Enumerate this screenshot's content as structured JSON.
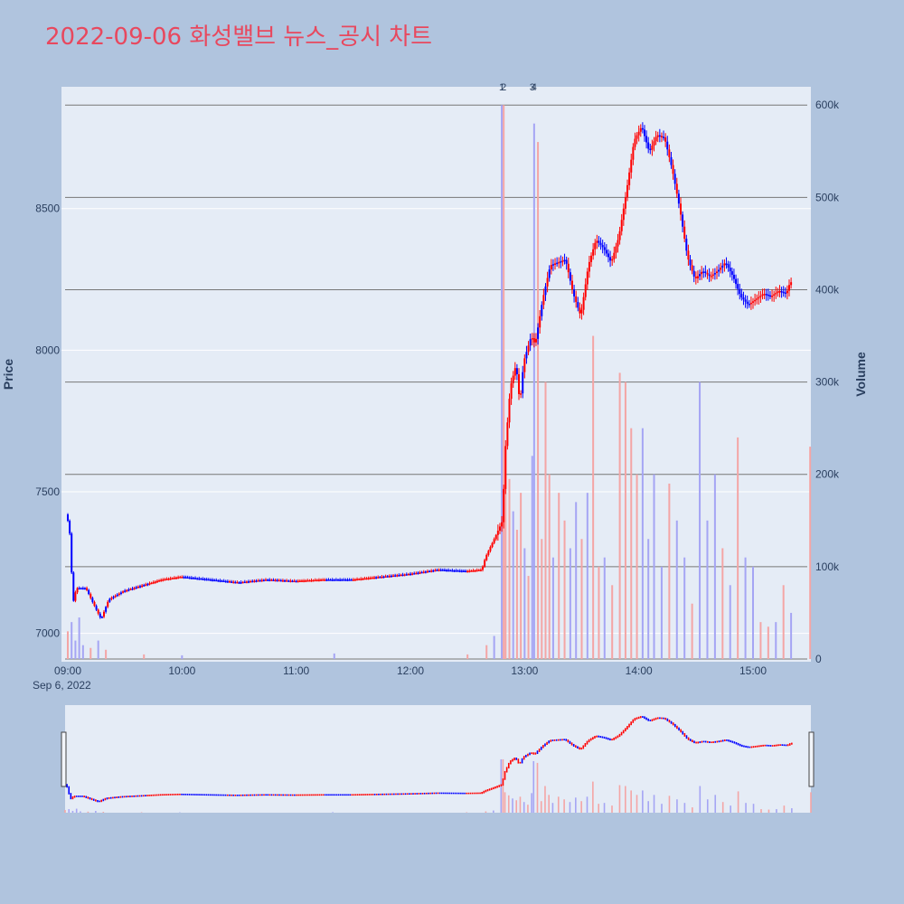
{
  "colors": {
    "background": "#b0c4de",
    "plot_background": "#e5ecf6",
    "title": "#e8485e",
    "up": "#ff0000",
    "down": "#0000ff",
    "volume_up": "#f4a5a5",
    "volume_down": "#a5a5f4",
    "axis_text": "#2a3f5f"
  },
  "chart_data": {
    "type": "candlestick",
    "title": "2022-09-06 화성밸브 뉴스_공시 차트",
    "x_ticks": [
      "09:00",
      "10:00",
      "11:00",
      "12:00",
      "13:00",
      "14:00",
      "15:00"
    ],
    "x_date_label": "Sep 6, 2022",
    "y_label": "Price",
    "y2_label": "Volume",
    "y_ticks": [
      7000,
      7500,
      8000,
      8500
    ],
    "y2_ticks": [
      "0",
      "100k",
      "200k",
      "300k",
      "400k",
      "500k",
      "600k"
    ],
    "y_range": [
      6900,
      8930
    ],
    "y2_range": [
      0,
      610000
    ],
    "x_range": [
      "09:00",
      "15:30"
    ],
    "annotations": [
      "1",
      "2",
      "3",
      "4"
    ],
    "annotation_times": [
      "12:48",
      "12:49",
      "13:04",
      "13:05"
    ],
    "price_path": [
      [
        "09:00",
        7420
      ],
      [
        "09:02",
        7330
      ],
      [
        "09:03",
        7100
      ],
      [
        "09:05",
        7160
      ],
      [
        "09:10",
        7160
      ],
      [
        "09:15",
        7090
      ],
      [
        "09:18",
        7050
      ],
      [
        "09:22",
        7120
      ],
      [
        "09:30",
        7150
      ],
      [
        "09:40",
        7170
      ],
      [
        "09:50",
        7190
      ],
      [
        "10:00",
        7200
      ],
      [
        "10:15",
        7190
      ],
      [
        "10:30",
        7180
      ],
      [
        "10:45",
        7190
      ],
      [
        "11:00",
        7185
      ],
      [
        "11:15",
        7190
      ],
      [
        "11:30",
        7190
      ],
      [
        "11:45",
        7200
      ],
      [
        "12:00",
        7210
      ],
      [
        "12:15",
        7225
      ],
      [
        "12:30",
        7220
      ],
      [
        "12:38",
        7225
      ],
      [
        "12:40",
        7270
      ],
      [
        "12:45",
        7340
      ],
      [
        "12:49",
        7400
      ],
      [
        "12:50",
        7620
      ],
      [
        "12:53",
        7870
      ],
      [
        "12:56",
        7950
      ],
      [
        "12:58",
        7810
      ],
      [
        "13:00",
        7960
      ],
      [
        "13:04",
        8050
      ],
      [
        "13:06",
        8020
      ],
      [
        "13:10",
        8180
      ],
      [
        "13:14",
        8300
      ],
      [
        "13:18",
        8310
      ],
      [
        "13:22",
        8320
      ],
      [
        "13:26",
        8200
      ],
      [
        "13:30",
        8120
      ],
      [
        "13:34",
        8300
      ],
      [
        "13:38",
        8390
      ],
      [
        "13:42",
        8360
      ],
      [
        "13:46",
        8310
      ],
      [
        "13:50",
        8400
      ],
      [
        "13:54",
        8560
      ],
      [
        "13:58",
        8740
      ],
      [
        "14:02",
        8790
      ],
      [
        "14:06",
        8700
      ],
      [
        "14:10",
        8760
      ],
      [
        "14:14",
        8750
      ],
      [
        "14:18",
        8640
      ],
      [
        "14:22",
        8500
      ],
      [
        "14:26",
        8330
      ],
      [
        "14:30",
        8250
      ],
      [
        "14:34",
        8280
      ],
      [
        "14:38",
        8260
      ],
      [
        "14:42",
        8280
      ],
      [
        "14:46",
        8310
      ],
      [
        "14:50",
        8260
      ],
      [
        "14:54",
        8190
      ],
      [
        "14:58",
        8160
      ],
      [
        "15:02",
        8180
      ],
      [
        "15:06",
        8200
      ],
      [
        "15:10",
        8190
      ],
      [
        "15:14",
        8210
      ],
      [
        "15:18",
        8200
      ],
      [
        "15:20",
        8240
      ]
    ],
    "volume_bars": [
      [
        "09:00",
        30000,
        "up"
      ],
      [
        "09:02",
        40000,
        "down"
      ],
      [
        "09:04",
        20000,
        "down"
      ],
      [
        "09:06",
        45000,
        "down"
      ],
      [
        "09:08",
        15000,
        "down"
      ],
      [
        "09:12",
        12000,
        "up"
      ],
      [
        "09:16",
        20000,
        "down"
      ],
      [
        "09:20",
        10000,
        "up"
      ],
      [
        "09:40",
        5000,
        "up"
      ],
      [
        "10:00",
        4000,
        "down"
      ],
      [
        "11:20",
        6000,
        "down"
      ],
      [
        "12:30",
        5000,
        "up"
      ],
      [
        "12:40",
        15000,
        "up"
      ],
      [
        "12:44",
        25000,
        "down"
      ],
      [
        "12:48",
        600000,
        "down"
      ],
      [
        "12:49",
        600000,
        "up"
      ],
      [
        "12:50",
        230000,
        "up"
      ],
      [
        "12:52",
        195000,
        "up"
      ],
      [
        "12:54",
        160000,
        "down"
      ],
      [
        "12:56",
        140000,
        "up"
      ],
      [
        "12:58",
        180000,
        "up"
      ],
      [
        "13:00",
        120000,
        "down"
      ],
      [
        "13:02",
        90000,
        "up"
      ],
      [
        "13:04",
        220000,
        "down"
      ],
      [
        "13:05",
        580000,
        "down"
      ],
      [
        "13:07",
        560000,
        "up"
      ],
      [
        "13:09",
        130000,
        "up"
      ],
      [
        "13:11",
        300000,
        "up"
      ],
      [
        "13:13",
        200000,
        "up"
      ],
      [
        "13:15",
        110000,
        "down"
      ],
      [
        "13:18",
        180000,
        "up"
      ],
      [
        "13:21",
        150000,
        "up"
      ],
      [
        "13:24",
        120000,
        "down"
      ],
      [
        "13:27",
        170000,
        "down"
      ],
      [
        "13:30",
        130000,
        "up"
      ],
      [
        "13:33",
        180000,
        "down"
      ],
      [
        "13:36",
        350000,
        "up"
      ],
      [
        "13:39",
        100000,
        "up"
      ],
      [
        "13:42",
        110000,
        "down"
      ],
      [
        "13:46",
        80000,
        "up"
      ],
      [
        "13:50",
        310000,
        "up"
      ],
      [
        "13:53",
        300000,
        "up"
      ],
      [
        "13:56",
        250000,
        "up"
      ],
      [
        "13:59",
        200000,
        "up"
      ],
      [
        "14:02",
        250000,
        "down"
      ],
      [
        "14:05",
        130000,
        "down"
      ],
      [
        "14:08",
        200000,
        "down"
      ],
      [
        "14:12",
        100000,
        "down"
      ],
      [
        "14:16",
        190000,
        "up"
      ],
      [
        "14:20",
        150000,
        "down"
      ],
      [
        "14:24",
        110000,
        "down"
      ],
      [
        "14:28",
        60000,
        "up"
      ],
      [
        "14:32",
        300000,
        "down"
      ],
      [
        "14:36",
        150000,
        "down"
      ],
      [
        "14:40",
        200000,
        "down"
      ],
      [
        "14:44",
        120000,
        "up"
      ],
      [
        "14:48",
        80000,
        "down"
      ],
      [
        "14:52",
        240000,
        "up"
      ],
      [
        "14:56",
        110000,
        "down"
      ],
      [
        "15:00",
        100000,
        "down"
      ],
      [
        "15:04",
        40000,
        "up"
      ],
      [
        "15:08",
        35000,
        "up"
      ],
      [
        "15:12",
        40000,
        "down"
      ],
      [
        "15:16",
        80000,
        "up"
      ],
      [
        "15:20",
        50000,
        "down"
      ],
      [
        "15:30",
        230000,
        "up"
      ]
    ]
  }
}
